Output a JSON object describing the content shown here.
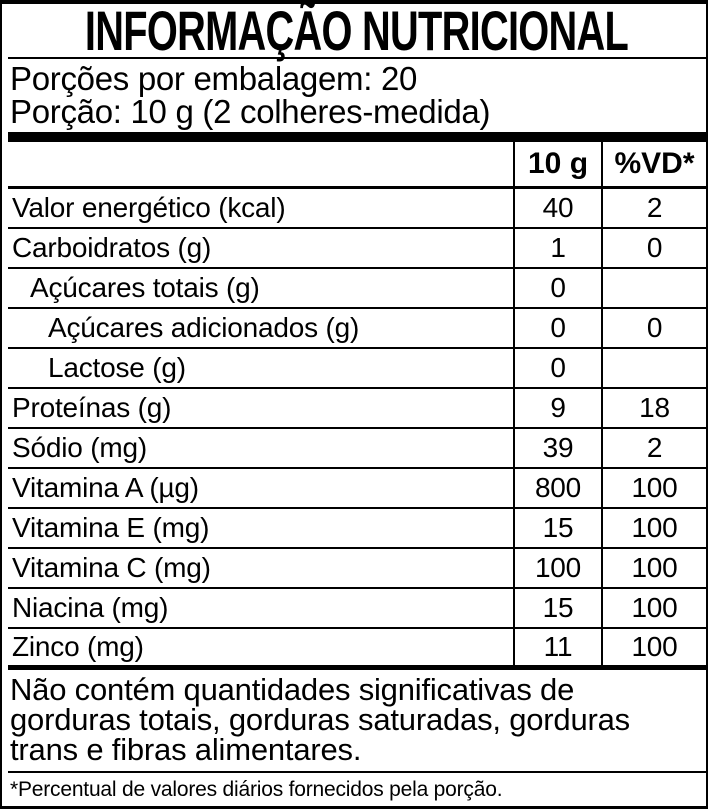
{
  "label": {
    "title": "INFORMAÇÃO NUTRICIONAL",
    "servings_per_package": "Porções por embalagem: 20",
    "portion": "Porção: 10 g (2 colheres-medida)",
    "table": {
      "columns": [
        "10 g",
        "%VD*"
      ],
      "rows": [
        {
          "name": "Valor energético (kcal)",
          "indent": 0,
          "amount": "40",
          "dv": "2"
        },
        {
          "name": "Carboidratos (g)",
          "indent": 0,
          "amount": "1",
          "dv": "0"
        },
        {
          "name": "Açúcares totais (g)",
          "indent": 1,
          "amount": "0",
          "dv": ""
        },
        {
          "name": "Açúcares adicionados (g)",
          "indent": 2,
          "amount": "0",
          "dv": "0"
        },
        {
          "name": "Lactose (g)",
          "indent": 2,
          "amount": "0",
          "dv": ""
        },
        {
          "name": "Proteínas (g)",
          "indent": 0,
          "amount": "9",
          "dv": "18"
        },
        {
          "name": "Sódio (mg)",
          "indent": 0,
          "amount": "39",
          "dv": "2"
        },
        {
          "name": "Vitamina A (µg)",
          "indent": 0,
          "amount": "800",
          "dv": "100"
        },
        {
          "name": "Vitamina E (mg)",
          "indent": 0,
          "amount": "15",
          "dv": "100"
        },
        {
          "name": "Vitamina C (mg)",
          "indent": 0,
          "amount": "100",
          "dv": "100"
        },
        {
          "name": "Niacina (mg)",
          "indent": 0,
          "amount": "15",
          "dv": "100"
        },
        {
          "name": "Zinco (mg)",
          "indent": 0,
          "amount": "11",
          "dv": "100"
        }
      ]
    },
    "note_lines": [
      "Não contém quantidades significativas de",
      "gorduras totais, gorduras saturadas, gorduras",
      "trans e fibras alimentares."
    ],
    "footnote": "*Percentual de valores diários fornecidos pela porção."
  }
}
